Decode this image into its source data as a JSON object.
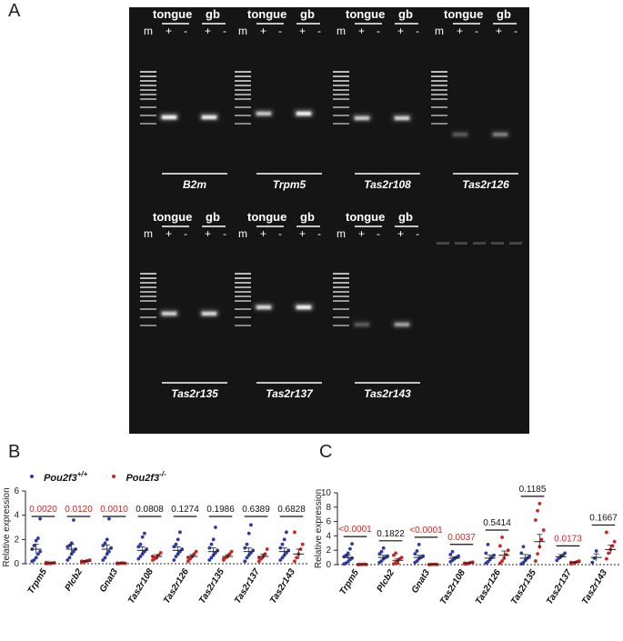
{
  "panels": {
    "a": "A",
    "b": "B",
    "c": "C"
  },
  "gel": {
    "lane_labels": {
      "marker": "m",
      "plus": "+",
      "minus": "-",
      "tongue": "tongue",
      "gb": "gb"
    },
    "row1_genes": [
      "B2m",
      "Trpm5",
      "Tas2r108",
      "Tas2r126"
    ],
    "row2_genes": [
      "Tas2r135",
      "Tas2r137",
      "Tas2r143"
    ],
    "band_intensity": {
      "B2m": [
        1.0,
        0.95
      ],
      "Trpm5": [
        0.75,
        1.0
      ],
      "Tas2r108": [
        0.75,
        0.8
      ],
      "Tas2r126": [
        0.25,
        0.4
      ],
      "Tas2r135": [
        0.8,
        0.85
      ],
      "Tas2r137": [
        0.85,
        1.0
      ],
      "Tas2r143": [
        0.25,
        0.55
      ]
    }
  },
  "legend": {
    "wt_label": "Pou2f3",
    "wt_sup": "+/+",
    "ko_label": "Pou2f3",
    "ko_sup": "-/-",
    "wt_color": "#2b3aa6",
    "ko_color": "#d4221e"
  },
  "chart_data": [
    {
      "type": "scatter",
      "panel": "B",
      "ylabel": "Relative expression",
      "ylim": [
        0,
        6
      ],
      "yticks": [
        0,
        2,
        4,
        6
      ],
      "categories": [
        "Trpm5",
        "Plcb2",
        "Gnat3",
        "Tas2r108",
        "Tas2r126",
        "Tas2r135",
        "Tas2r137",
        "Tas2r143"
      ],
      "p_values": [
        "0.0020",
        "0.0120",
        "0.0010",
        "0.0808",
        "0.1274",
        "0.1986",
        "0.6389",
        "0.6828"
      ],
      "p_significant": [
        true,
        true,
        true,
        false,
        false,
        false,
        false,
        false
      ],
      "series": [
        {
          "name": "Pou2f3 +/+",
          "mean": [
            1.2,
            1.2,
            1.2,
            1.1,
            1.1,
            1.0,
            1.0,
            1.0
          ],
          "sem": [
            0.4,
            0.4,
            0.35,
            0.3,
            0.3,
            0.3,
            0.3,
            0.3
          ],
          "points": [
            [
              0.2,
              0.3,
              0.5,
              0.8,
              1.0,
              1.2,
              1.5,
              1.9,
              2.1,
              3.7
            ],
            [
              0.3,
              0.5,
              0.8,
              1.0,
              1.2,
              1.4,
              1.5,
              1.7,
              3.6
            ],
            [
              0.3,
              0.5,
              0.8,
              1.0,
              1.3,
              1.5,
              1.7,
              2.0,
              3.7
            ],
            [
              0.4,
              0.6,
              0.8,
              1.0,
              1.2,
              1.4,
              1.6,
              2.2,
              2.5
            ],
            [
              0.3,
              0.6,
              0.8,
              1.0,
              1.2,
              1.4,
              1.6,
              2.0,
              2.6
            ],
            [
              0.3,
              0.5,
              0.7,
              0.9,
              1.1,
              1.3,
              1.6,
              2.0,
              3.0
            ],
            [
              0.2,
              0.5,
              0.7,
              0.9,
              1.1,
              1.3,
              1.6,
              2.5,
              3.2
            ],
            [
              0.3,
              0.5,
              0.7,
              0.9,
              1.1,
              1.3,
              1.6,
              2.0,
              2.6
            ]
          ]
        },
        {
          "name": "Pou2f3 -/-",
          "mean": [
            0.05,
            0.2,
            0.05,
            0.6,
            0.6,
            0.6,
            0.6,
            0.8
          ],
          "sem": [
            0.02,
            0.05,
            0.02,
            0.15,
            0.15,
            0.15,
            0.2,
            0.4
          ],
          "points": [
            [
              0.0,
              0.02,
              0.05,
              0.05,
              0.08,
              0.1,
              0.05,
              0.02
            ],
            [
              0.1,
              0.15,
              0.2,
              0.25,
              0.3,
              0.2,
              0.1
            ],
            [
              0.0,
              0.02,
              0.05,
              0.05,
              0.03,
              0.05,
              0.02
            ],
            [
              0.3,
              0.4,
              0.5,
              0.7,
              0.9,
              0.6
            ],
            [
              0.2,
              0.4,
              0.6,
              0.8,
              1.0,
              0.5
            ],
            [
              0.3,
              0.5,
              0.6,
              0.8,
              1.0,
              0.4
            ],
            [
              0.2,
              0.4,
              0.6,
              0.8,
              1.2,
              0.5
            ],
            [
              0.2,
              0.5,
              0.8,
              1.2,
              1.6,
              2.6
            ]
          ]
        }
      ]
    },
    {
      "type": "scatter",
      "panel": "C",
      "ylabel": "Relative expression",
      "ylim": [
        0,
        10
      ],
      "yticks": [
        0,
        2,
        4,
        6,
        8,
        10
      ],
      "categories": [
        "Trpm5",
        "Plcb2",
        "Gnat3",
        "Tas2r108",
        "Tas2r126",
        "Tas2r135",
        "Tas2r137",
        "Tas2r143"
      ],
      "p_values": [
        "<0.0001",
        "0.1822",
        "<0.0001",
        "0.0037",
        "0.5414",
        "0.1185",
        "0.0173",
        "0.1667"
      ],
      "p_significant": [
        true,
        false,
        true,
        true,
        false,
        false,
        true,
        false
      ],
      "series": [
        {
          "name": "Pou2f3 +/+",
          "mean": [
            1.0,
            1.0,
            1.0,
            0.9,
            0.9,
            0.9,
            1.1,
            1.0
          ],
          "sem": [
            0.3,
            0.3,
            0.3,
            0.2,
            0.4,
            0.5,
            0.3,
            0.5
          ],
          "points": [
            [
              0.1,
              0.2,
              0.4,
              0.7,
              0.9,
              1.1,
              1.3,
              1.6,
              2.2,
              2.9
            ],
            [
              0.3,
              0.5,
              0.8,
              1.0,
              1.2,
              1.5,
              1.8,
              2.3
            ],
            [
              0.3,
              0.5,
              0.8,
              1.0,
              1.2,
              1.5,
              1.9,
              2.8
            ],
            [
              0.4,
              0.6,
              0.8,
              1.0,
              1.2,
              1.4,
              1.8
            ],
            [
              0.2,
              0.4,
              0.7,
              1.0,
              1.3,
              1.6,
              2.8
            ],
            [
              0.1,
              0.3,
              0.6,
              0.9,
              1.2,
              1.6,
              2.5
            ],
            [
              0.6,
              0.9,
              1.1,
              1.3,
              1.6
            ],
            [
              0.3,
              0.9,
              1.9
            ]
          ]
        },
        {
          "name": "Pou2f3 -/-",
          "mean": [
            0.03,
            0.6,
            0.03,
            0.2,
            1.3,
            3.2,
            0.3,
            2.1
          ],
          "sem": [
            0.01,
            0.2,
            0.01,
            0.05,
            0.6,
            1.0,
            0.1,
            0.6
          ],
          "points": [
            [
              0.0,
              0.02,
              0.03,
              0.05,
              0.02,
              0.01
            ],
            [
              0.1,
              0.3,
              0.5,
              0.8,
              1.0,
              1.3,
              1.6,
              0.2
            ],
            [
              0.0,
              0.02,
              0.03,
              0.05,
              0.02,
              0.01
            ],
            [
              0.1,
              0.15,
              0.2,
              0.3,
              0.35,
              0.2,
              0.1
            ],
            [
              0.2,
              0.5,
              0.9,
              1.4,
              2.0,
              2.6,
              3.8
            ],
            [
              0.5,
              1.5,
              2.5,
              3.5,
              4.8,
              6.2,
              7.5,
              8.5
            ],
            [
              0.1,
              0.2,
              0.3,
              0.4,
              0.5,
              0.3
            ],
            [
              0.8,
              1.6,
              2.1,
              2.6,
              3.2,
              4.5
            ]
          ]
        }
      ]
    }
  ]
}
